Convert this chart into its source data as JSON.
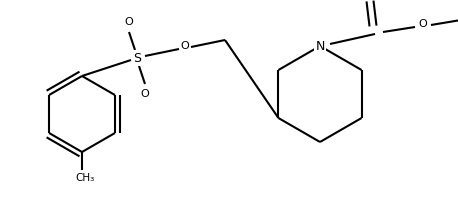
{
  "bg_color": "#ffffff",
  "line_color": "#000000",
  "line_width": 1.5,
  "figsize": [
    4.58,
    2.14
  ],
  "dpi": 100,
  "xlim": [
    0,
    458
  ],
  "ylim": [
    0,
    214
  ]
}
